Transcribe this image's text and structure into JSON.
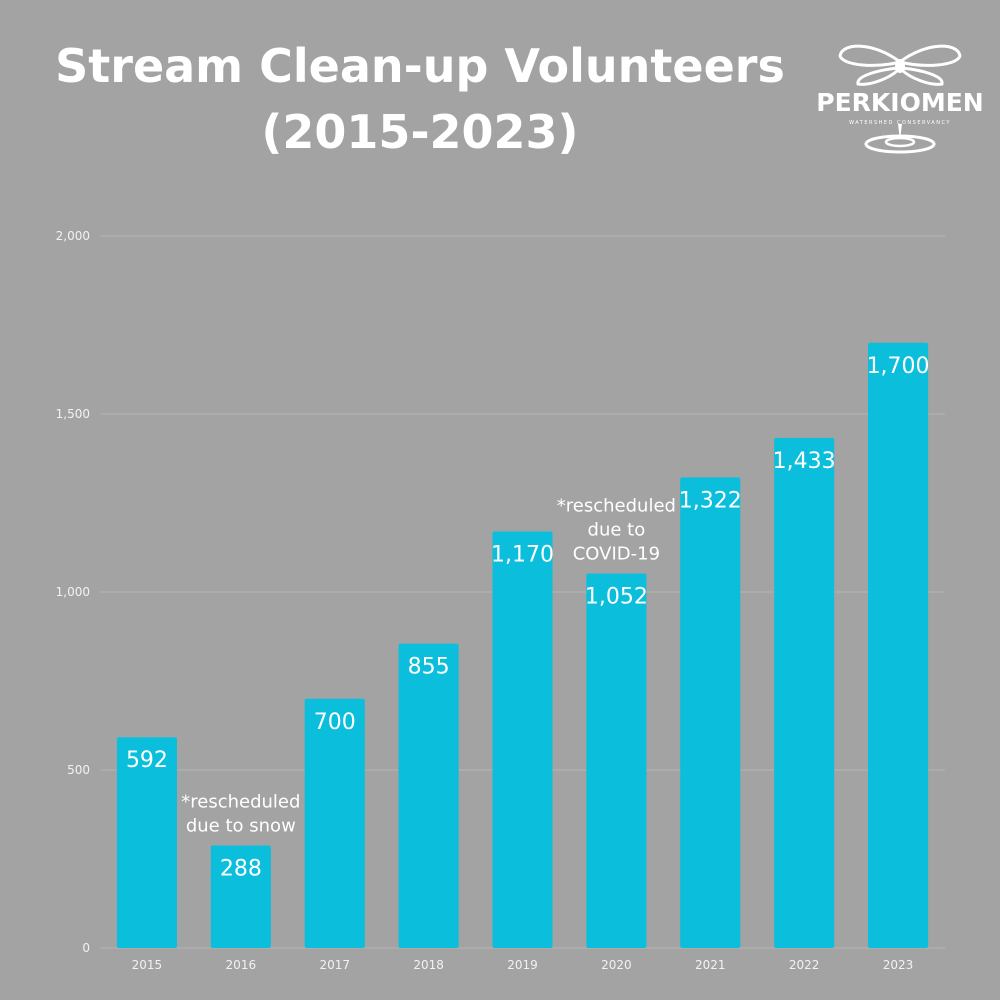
{
  "title_line1": "Stream Clean-up Volunteers",
  "title_line2": "(2015-2023)",
  "logo": {
    "word": "PERKIOMEN",
    "sub": "WATERSHED CONSERVANCY"
  },
  "colors": {
    "background": "#a3a3a3",
    "bar": "#0bbfdc",
    "text": "#ffffff",
    "grid": "#b5b5b5"
  },
  "chart_data": {
    "type": "bar",
    "categories": [
      "2015",
      "2016",
      "2017",
      "2018",
      "2019",
      "2020",
      "2021",
      "2022",
      "2023"
    ],
    "values": [
      592,
      288,
      700,
      855,
      1170,
      1052,
      1322,
      1433,
      1700
    ],
    "value_labels": [
      "592",
      "288",
      "700",
      "855",
      "1,170",
      "1,052",
      "1,322",
      "1,433",
      "1,700"
    ],
    "ylim": [
      0,
      2000
    ],
    "yticks": [
      0,
      500,
      1000,
      1500,
      2000
    ],
    "ytick_labels": [
      "0",
      "500",
      "1,000",
      "1,500",
      "2,000"
    ],
    "grid": true,
    "title": "Stream Clean-up Volunteers (2015-2023)",
    "xlabel": "",
    "ylabel": "",
    "annotations": [
      {
        "category": "2016",
        "lines": [
          "*rescheduled",
          "due to snow"
        ]
      },
      {
        "category": "2020",
        "lines": [
          "*rescheduled",
          "due to",
          "COVID-19"
        ]
      }
    ]
  }
}
